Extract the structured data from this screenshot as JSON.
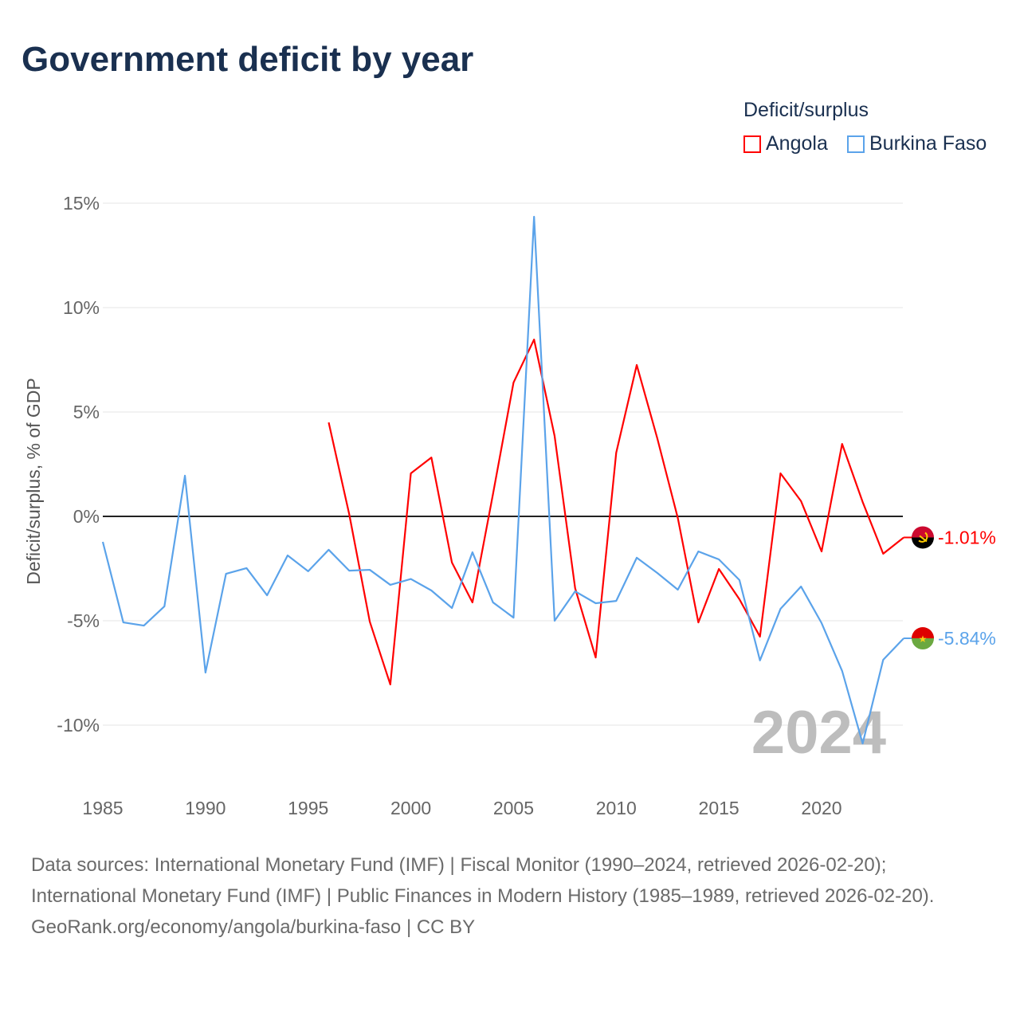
{
  "chart_data": {
    "type": "line",
    "title": "Government deficit by year",
    "ylabel": "Deficit/surplus, % of GDP",
    "xlabel": "",
    "xlim": [
      1985,
      2024
    ],
    "ylim": [
      -12.5,
      15.5
    ],
    "x_ticks": [
      1985,
      1990,
      1995,
      2000,
      2005,
      2010,
      2015,
      2020
    ],
    "x_tick_labels": [
      "1985",
      "1990",
      "1995",
      "2000",
      "2005",
      "2010",
      "2015",
      "2020"
    ],
    "y_ticks": [
      15,
      10,
      5,
      0,
      -5,
      -10
    ],
    "y_tick_labels": [
      "15%",
      "10%",
      "5%",
      "0%",
      "-5%",
      "-10%"
    ],
    "grid": true,
    "legend": {
      "title": "Deficit/surplus",
      "placement": "top-right"
    },
    "year_watermark": "2024",
    "series": [
      {
        "name": "Angola",
        "color": "#ff0000",
        "end_label": "-1.01%",
        "x": [
          1996,
          1997,
          1998,
          1999,
          2000,
          2001,
          2002,
          2003,
          2004,
          2005,
          2006,
          2007,
          2008,
          2009,
          2010,
          2011,
          2012,
          2013,
          2014,
          2015,
          2016,
          2017,
          2018,
          2019,
          2020,
          2021,
          2022,
          2023,
          2024
        ],
        "values": [
          4.5,
          0.1,
          -5.04,
          -8.05,
          2.06,
          2.82,
          -2.21,
          -4.12,
          1.07,
          6.41,
          8.47,
          3.85,
          -3.44,
          -6.76,
          3.05,
          7.25,
          3.74,
          -0.08,
          -5.08,
          -2.52,
          -3.97,
          -5.76,
          2.06,
          0.73,
          -1.68,
          3.47,
          0.69,
          -1.79,
          -1.01
        ]
      },
      {
        "name": "Burkina Faso",
        "color": "#5ba3ea",
        "end_label": "-5.84%",
        "x": [
          1985,
          1986,
          1987,
          1988,
          1989,
          1990,
          1991,
          1992,
          1993,
          1994,
          1995,
          1996,
          1997,
          1998,
          1999,
          2000,
          2001,
          2002,
          2003,
          2004,
          2005,
          2006,
          2007,
          2008,
          2009,
          2010,
          2011,
          2012,
          2013,
          2014,
          2015,
          2016,
          2017,
          2018,
          2019,
          2020,
          2021,
          2022,
          2023,
          2024
        ],
        "values": [
          -1.22,
          -5.08,
          -5.23,
          -4.31,
          1.95,
          -7.48,
          -2.75,
          -2.48,
          -3.78,
          -1.87,
          -2.63,
          -1.6,
          -2.6,
          -2.56,
          -3.28,
          -3.0,
          -3.55,
          -4.39,
          -1.72,
          -4.12,
          -4.85,
          14.35,
          -5.0,
          -3.59,
          -4.16,
          -4.05,
          -1.98,
          -2.71,
          -3.51,
          -1.68,
          -2.06,
          -3.05,
          -6.9,
          -4.43,
          -3.36,
          -5.11,
          -7.4,
          -10.88,
          -6.87,
          -5.84
        ]
      }
    ]
  },
  "footer": {
    "sources": "Data sources: International Monetary Fund (IMF) | Fiscal Monitor (1990–2024, retrieved 2026-02-20); International Monetary Fund (IMF) | Public Finances in Modern History (1985–1989, retrieved 2026-02-20).",
    "attribution": "GeoRank.org/economy/angola/burkina-faso | CC BY"
  }
}
